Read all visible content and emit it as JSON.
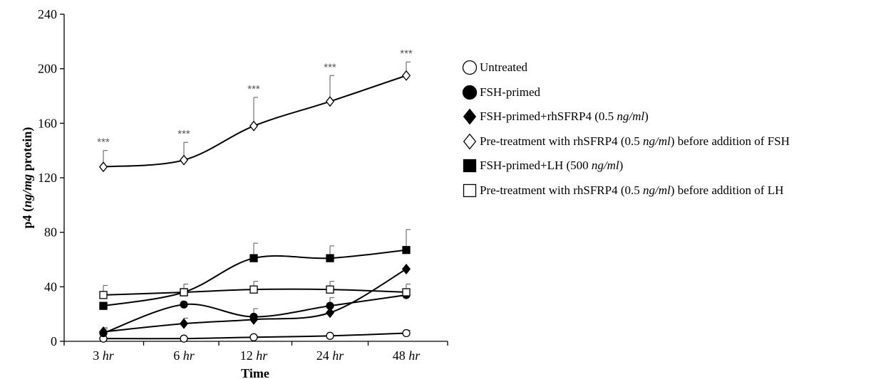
{
  "chart_data": {
    "type": "line",
    "xlabel": "Time",
    "ylabel_parts": [
      "p4 (",
      "ng/mg",
      " protein)"
    ],
    "ylim": [
      0,
      240
    ],
    "yticks": [
      0,
      40,
      80,
      120,
      160,
      200,
      240
    ],
    "categories": [
      {
        "num": "3",
        "unit": "hr"
      },
      {
        "num": "6",
        "unit": "hr"
      },
      {
        "num": "12",
        "unit": "hr"
      },
      {
        "num": "24",
        "unit": "hr"
      },
      {
        "num": "48",
        "unit": "hr"
      }
    ],
    "significance_label": "***",
    "series": [
      {
        "name": "Untreated",
        "marker": "circle",
        "filled": false,
        "values": [
          2,
          2,
          3,
          4,
          6
        ],
        "errors": [
          0,
          0,
          0,
          0,
          2
        ]
      },
      {
        "name": "FSH-primed",
        "marker": "circle",
        "filled": true,
        "values": [
          6,
          27,
          18,
          26,
          34
        ],
        "errors": [
          3,
          0,
          6,
          6,
          0
        ]
      },
      {
        "name": "FSH-primed+rhSFRP4 (0.5 ng/ml)",
        "marker": "diamond",
        "filled": true,
        "values": [
          7,
          13,
          16,
          21,
          53
        ],
        "errors": [
          3,
          4,
          0,
          0,
          0
        ]
      },
      {
        "name": "Pre-treatment with rhSFRP4 (0.5 ng/ml) before addition of FSH",
        "marker": "diamond",
        "filled": false,
        "values": [
          128,
          133,
          158,
          176,
          195
        ],
        "errors": [
          12,
          13,
          21,
          19,
          10
        ]
      },
      {
        "name": "FSH-primed+LH (500 ng/ml)",
        "marker": "square",
        "filled": true,
        "values": [
          26,
          36,
          61,
          61,
          67
        ],
        "errors": [
          0,
          6,
          11,
          9,
          15
        ]
      },
      {
        "name": "Pre-treatment with rhSFRP4 (0.5 ng/ml) before addition of LH",
        "marker": "square",
        "filled": false,
        "values": [
          34,
          36,
          38,
          38,
          36
        ],
        "errors": [
          7,
          0,
          6,
          6,
          6
        ]
      }
    ],
    "legend": [
      [
        {
          "t": "Untreated"
        }
      ],
      [
        {
          "t": "FSH-primed"
        }
      ],
      [
        {
          "t": "FSH-primed+rhSFRP4 (0.5 "
        },
        {
          "t": "ng/ml",
          "i": true
        },
        {
          "t": ")"
        }
      ],
      [
        {
          "t": "Pre-treatment with rhSFRP4 (0.5 "
        },
        {
          "t": "ng/ml",
          "i": true
        },
        {
          "t": ") before addition of FSH"
        }
      ],
      [
        {
          "t": "FSH-primed+LH (500 "
        },
        {
          "t": "ng/ml",
          "i": true
        },
        {
          "t": ")"
        }
      ],
      [
        {
          "t": "Pre-treatment with rhSFRP4 (0.5 "
        },
        {
          "t": "ng/ml",
          "i": true
        },
        {
          "t": ") before addition of LH"
        }
      ]
    ],
    "grid": false,
    "legend_position": "right"
  }
}
